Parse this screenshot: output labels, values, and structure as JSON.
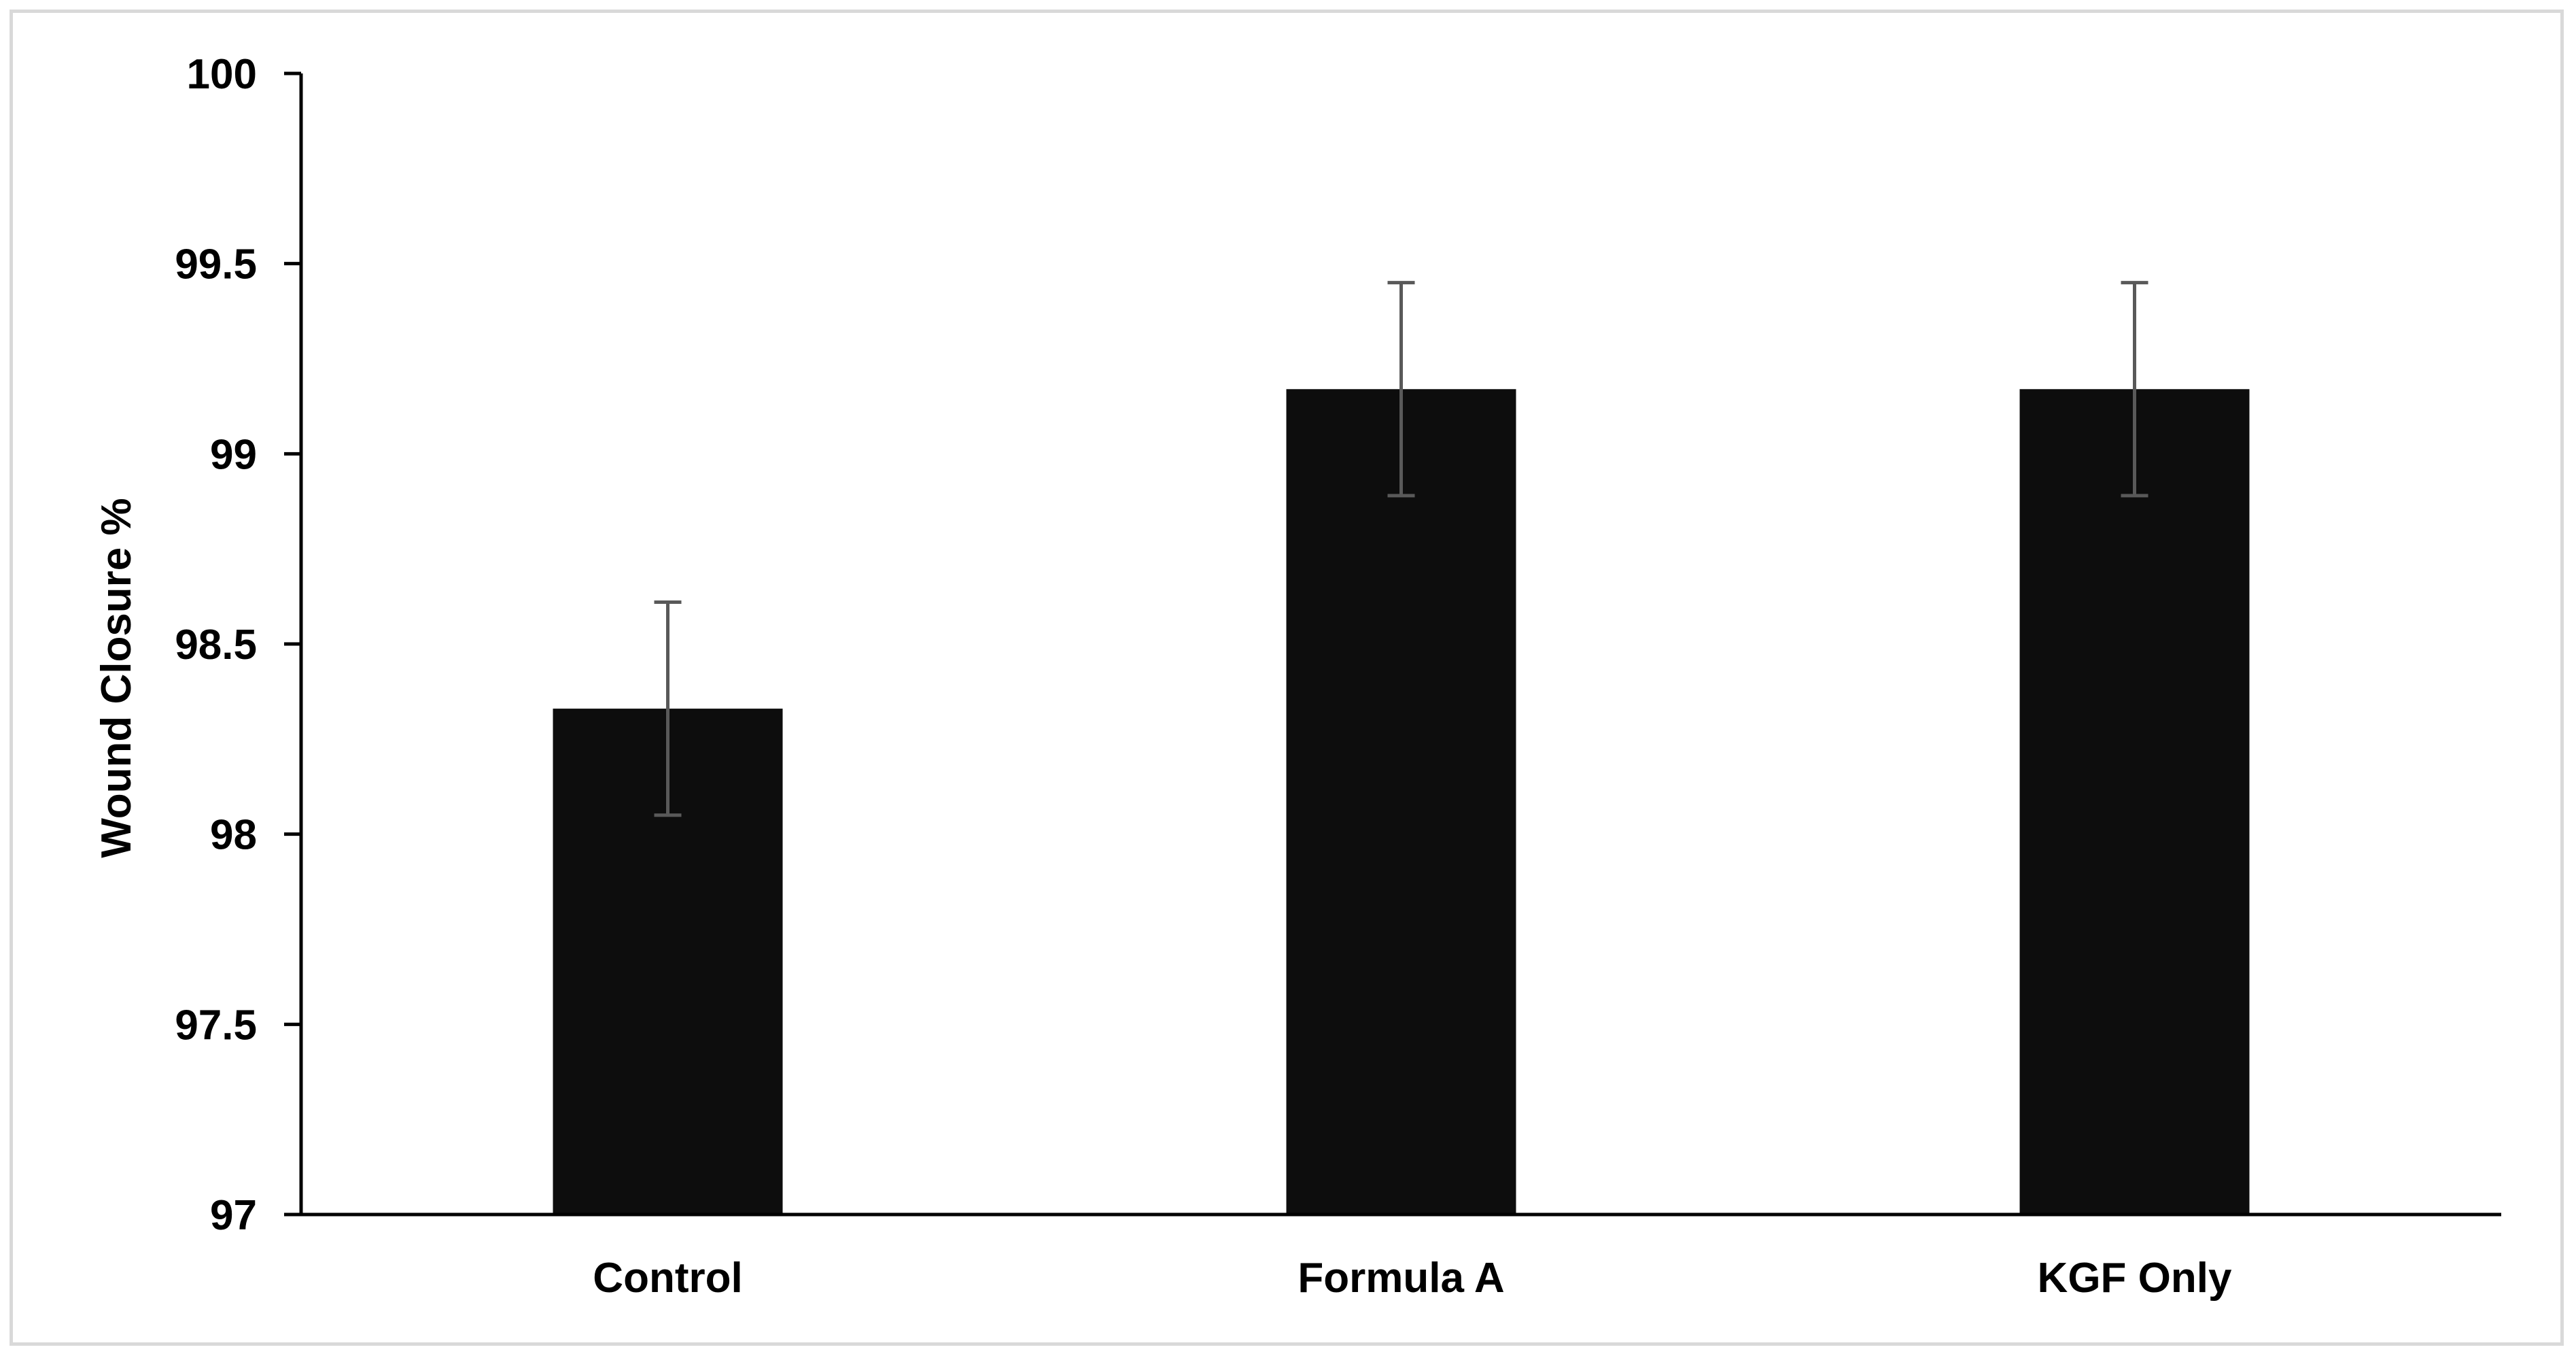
{
  "chart_data": {
    "type": "bar",
    "categories": [
      "Control",
      "Formula A",
      "KGF Only"
    ],
    "values": [
      98.33,
      99.17,
      99.17
    ],
    "error": [
      0.28,
      0.28,
      0.28
    ],
    "title": "",
    "xlabel": "",
    "ylabel": "Wound Closure %",
    "ylim": [
      97,
      100
    ],
    "yticks": [
      97,
      97.5,
      98,
      98.5,
      99,
      99.5,
      100
    ],
    "ytick_labels": [
      "97",
      "97.5",
      "98",
      "98.5",
      "99",
      "99.5",
      "100"
    ],
    "grid": false,
    "legend": "none",
    "colors": {
      "bar": "#0d0d0d",
      "error_bar": "#595959",
      "axis": "#000000",
      "frame": "#d9d9d9"
    }
  }
}
